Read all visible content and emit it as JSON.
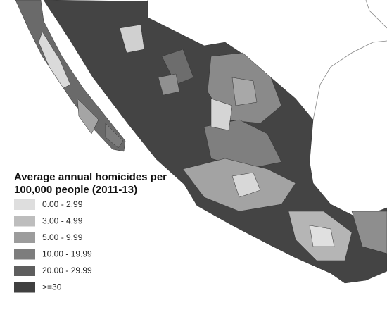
{
  "legend": {
    "title": [
      "Average annual homicides per",
      "100,000 people (2011-13)"
    ],
    "items": [
      {
        "label": "0.00 - 2.99",
        "color": "#dedede"
      },
      {
        "label": "3.00 - 4.99",
        "color": "#bdbdbd"
      },
      {
        "label": "5.00 - 9.99",
        "color": "#9c9c9c"
      },
      {
        "label": "10.00 - 19.99",
        "color": "#7d7d7d"
      },
      {
        "label": "20.00 - 29.99",
        "color": "#5e5e5e"
      },
      {
        "label": ">=30",
        "color": "#404040"
      }
    ]
  }
}
